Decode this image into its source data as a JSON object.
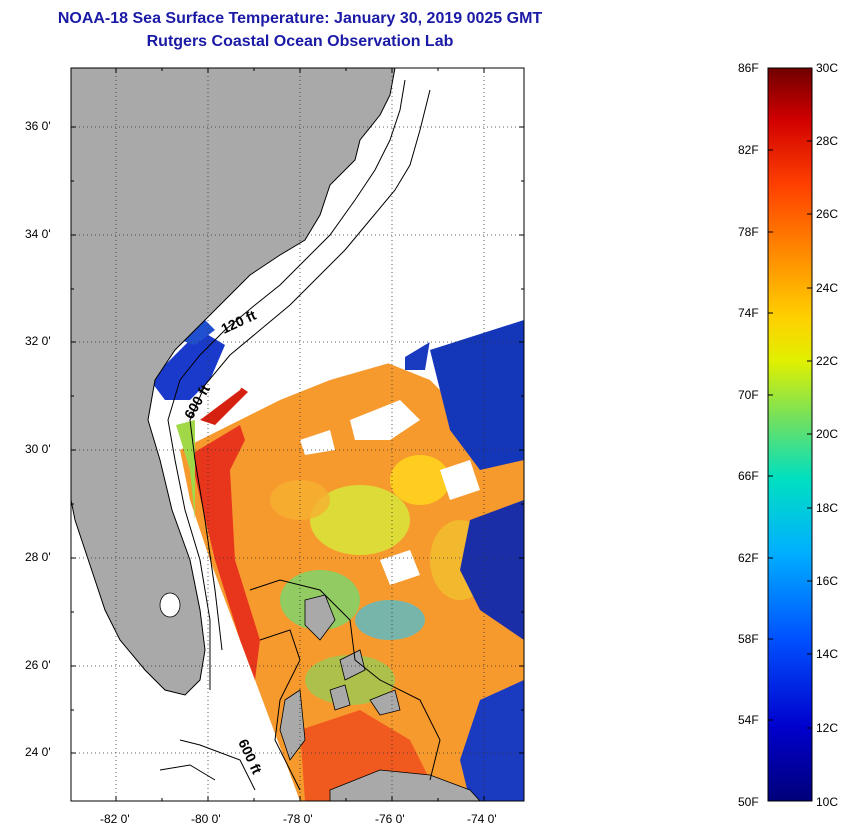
{
  "title": "NOAA-18 Sea Surface Temperature:  January 30, 2019 0025 GMT",
  "subtitle": "Rutgers Coastal Ocean Observation Lab",
  "map": {
    "lat_labels": [
      "36 0'",
      "34 0'",
      "32 0'",
      "30 0'",
      "28 0'",
      "26 0'",
      "24 0'"
    ],
    "lon_labels": [
      "-82 0'",
      "-80 0'",
      "-78 0'",
      "-76 0'",
      "-74 0'"
    ],
    "contour_labels": [
      "120 ft",
      "600 ft",
      "600 ft"
    ],
    "land_color": "#a9a9a9",
    "cloud_color": "#ffffff"
  },
  "colorbar": {
    "fahrenheit_labels": [
      "86F",
      "82F",
      "78F",
      "74F",
      "70F",
      "66F",
      "62F",
      "58F",
      "54F",
      "50F"
    ],
    "celsius_labels": [
      "30C",
      "28C",
      "26C",
      "24C",
      "22C",
      "20C",
      "18C",
      "16C",
      "14C",
      "12C",
      "10C"
    ],
    "min_c": 10,
    "max_c": 30
  }
}
